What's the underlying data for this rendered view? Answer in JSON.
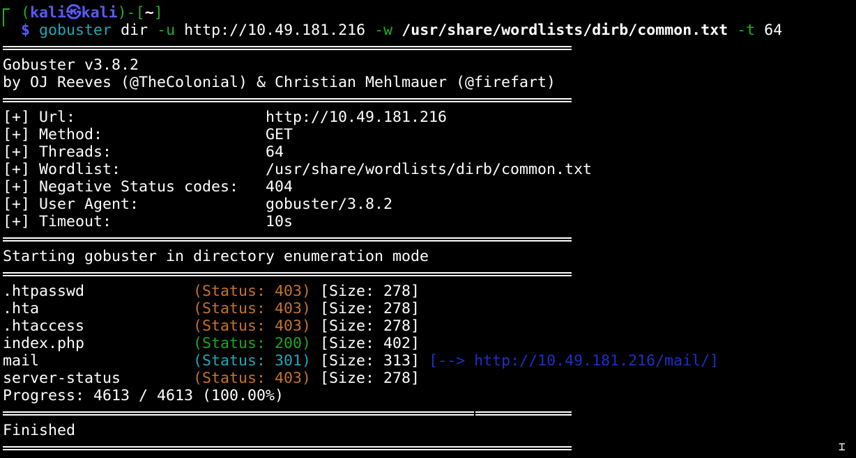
{
  "prompt": {
    "open": "(",
    "user": "kali",
    "at": "㉿",
    "host": "kali",
    "close": ")-[",
    "dir": "~",
    "end": "]",
    "dollar": "$",
    "cmd": "gobuster",
    "sub": "dir",
    "flag_u": "-u",
    "url": "http://10.49.181.216",
    "flag_w": "-w",
    "wordlist": "/usr/share/wordlists/dirb/common.txt",
    "flag_t": "-t",
    "threads": "64"
  },
  "banner": [
    "Gobuster v3.8.2",
    "by OJ Reeves (@TheColonial) & Christian Mehlmauer (@firefart)"
  ],
  "config": [
    {
      "label": "[+] Url:",
      "value": "http://10.49.181.216"
    },
    {
      "label": "[+] Method:",
      "value": "GET"
    },
    {
      "label": "[+] Threads:",
      "value": "64"
    },
    {
      "label": "[+] Wordlist:",
      "value": "/usr/share/wordlists/dirb/common.txt"
    },
    {
      "label": "[+] Negative Status codes:",
      "value": "404"
    },
    {
      "label": "[+] User Agent:",
      "value": "gobuster/3.8.2"
    },
    {
      "label": "[+] Timeout:",
      "value": "10s"
    }
  ],
  "start_msg": "Starting gobuster in directory enumeration mode",
  "results": [
    {
      "path": ".htpasswd",
      "status": "(Status: 403)",
      "size": "[Size: 278]",
      "kind": "orange"
    },
    {
      "path": ".hta",
      "status": "(Status: 403)",
      "size": "[Size: 278]",
      "kind": "orange"
    },
    {
      "path": ".htaccess",
      "status": "(Status: 403)",
      "size": "[Size: 278]",
      "kind": "orange"
    },
    {
      "path": "index.php",
      "status": "(Status: 200)",
      "size": "[Size: 402]",
      "kind": "ok"
    },
    {
      "path": "mail",
      "status": "(Status: 301)",
      "size": "[Size: 313]",
      "kind": "cyan",
      "redirect": "[--> http://10.49.181.216/mail/]"
    },
    {
      "path": "server-status",
      "status": "(Status: 403)",
      "size": "[Size: 278]",
      "kind": "orange"
    }
  ],
  "progress": "Progress: 4613 / 4613 (100.00%)",
  "finished": "Finished",
  "colors": {
    "green": "#1fb01f",
    "blue": "#5a5af5",
    "orange": "#c67327",
    "cyan": "#1ea8b8",
    "redirect": "#1e2fc8"
  }
}
